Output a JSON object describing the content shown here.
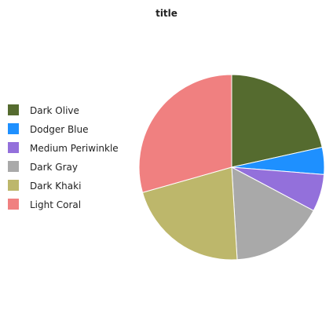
{
  "chart_data": {
    "type": "pie",
    "title": "title",
    "legend_position": "left",
    "series": [
      {
        "name": "Dark Olive",
        "value": 20.5,
        "color": "#556B2F"
      },
      {
        "name": "Dodger Blue",
        "value": 4.5,
        "color": "#1E90FF"
      },
      {
        "name": "Medium Periwinkle",
        "value": 6.2,
        "color": "#9370DB"
      },
      {
        "name": "Dark Gray",
        "value": 15.5,
        "color": "#A9A9A9"
      },
      {
        "name": "Dark Khaki",
        "value": 20.5,
        "color": "#BDB76B"
      },
      {
        "name": "Light Coral",
        "value": 28.0,
        "color": "#F08080"
      }
    ]
  }
}
